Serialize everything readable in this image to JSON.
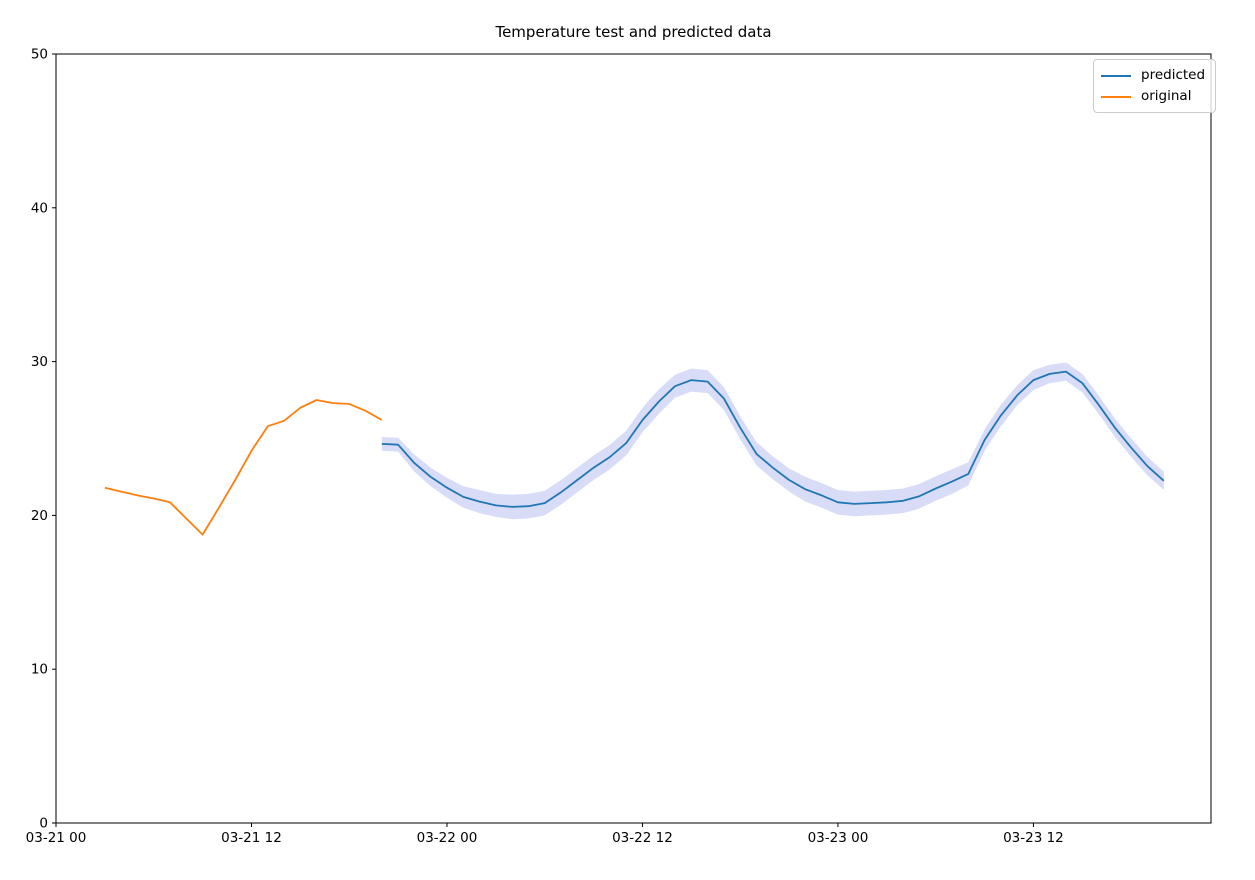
{
  "chart_data": {
    "type": "line",
    "title": "Temperature test and predicted data",
    "xlabel": "",
    "ylabel": "",
    "grid": false,
    "legend_position": "upper right",
    "axis_color": "#000000",
    "x_axis": {
      "unit": "hours since 03-21 00:00",
      "range": [
        0,
        70.9
      ],
      "ticks": [
        {
          "h": 0,
          "label": "03-21 00"
        },
        {
          "h": 12,
          "label": "03-21 12"
        },
        {
          "h": 24,
          "label": "03-22 00"
        },
        {
          "h": 36,
          "label": "03-22 12"
        },
        {
          "h": 48,
          "label": "03-23 00"
        },
        {
          "h": 60,
          "label": "03-23 12"
        }
      ]
    },
    "y_axis": {
      "range": [
        0,
        50
      ],
      "ticks": [
        0,
        10,
        20,
        30,
        40,
        50
      ]
    },
    "series": [
      {
        "name": "predicted",
        "color": "#1f77b4",
        "band_color": "#d9dcf7",
        "x": [
          20,
          21,
          22,
          23,
          24,
          25,
          26,
          27,
          28,
          29,
          30,
          31,
          32,
          33,
          34,
          35,
          36,
          37,
          38,
          39,
          40,
          41,
          42,
          43,
          44,
          45,
          46,
          47,
          48,
          49,
          50,
          51,
          52,
          53,
          54,
          55,
          56,
          57,
          58,
          59,
          60,
          61,
          62,
          63,
          64,
          65,
          66,
          67,
          68
        ],
        "values": [
          24.65,
          24.6,
          23.4,
          22.5,
          21.8,
          21.2,
          20.9,
          20.65,
          20.55,
          20.6,
          20.8,
          21.5,
          22.3,
          23.1,
          23.8,
          24.7,
          26.2,
          27.4,
          28.4,
          28.8,
          28.7,
          27.6,
          25.7,
          24.0,
          23.1,
          22.3,
          21.7,
          21.3,
          20.85,
          20.75,
          20.8,
          20.85,
          20.95,
          21.25,
          21.75,
          22.2,
          22.7,
          24.9,
          26.5,
          27.8,
          28.8,
          29.2,
          29.35,
          28.6,
          27.2,
          25.7,
          24.4,
          23.2,
          22.25
        ],
        "band_halfwidth": [
          0.45,
          0.45,
          0.55,
          0.6,
          0.65,
          0.7,
          0.75,
          0.75,
          0.8,
          0.8,
          0.8,
          0.8,
          0.8,
          0.8,
          0.8,
          0.8,
          0.8,
          0.8,
          0.75,
          0.75,
          0.75,
          0.75,
          0.75,
          0.75,
          0.75,
          0.75,
          0.8,
          0.8,
          0.8,
          0.8,
          0.8,
          0.8,
          0.8,
          0.8,
          0.8,
          0.8,
          0.75,
          0.7,
          0.7,
          0.65,
          0.65,
          0.6,
          0.6,
          0.6,
          0.6,
          0.6,
          0.6,
          0.6,
          0.6
        ]
      },
      {
        "name": "original",
        "color": "#ff7f0e",
        "x": [
          3,
          4,
          5,
          6,
          7,
          8,
          9,
          10,
          11,
          12,
          13,
          14,
          15,
          16,
          17,
          18,
          19,
          20
        ],
        "values": [
          21.8,
          21.55,
          21.3,
          21.1,
          20.85,
          19.8,
          18.75,
          20.5,
          22.3,
          24.2,
          25.8,
          26.15,
          27.0,
          27.5,
          27.3,
          27.25,
          26.8,
          26.2
        ]
      }
    ]
  }
}
